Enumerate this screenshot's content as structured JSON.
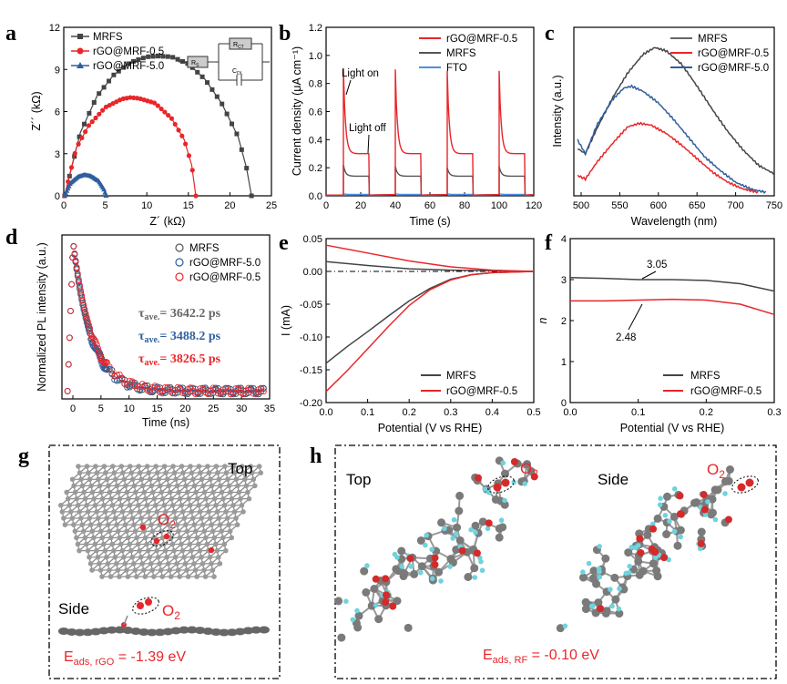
{
  "panels": {
    "a": {
      "label": "a",
      "xlabel": "Z´ (kΩ)",
      "ylabel": "Z´´ (kΩ)",
      "xticks": [
        "0",
        "5",
        "10",
        "15",
        "20",
        "25"
      ],
      "yticks": [
        "0",
        "3",
        "6",
        "9",
        "12"
      ],
      "legend": [
        "MRFS",
        "rGO@MRF-0.5",
        "rGO@MRF-5.0"
      ],
      "circuit": {
        "rs": "R",
        "rs_sub": "S",
        "rct": "R",
        "rct_sub": "CT",
        "cdl": "C",
        "cdl_sub": "DL"
      }
    },
    "b": {
      "label": "b",
      "xlabel": "Time (s)",
      "ylabel": "Current density (μA cm⁻¹)",
      "xticks": [
        "0",
        "20",
        "40",
        "60",
        "80",
        "100",
        "120"
      ],
      "yticks": [
        "0.0",
        "0.2",
        "0.4",
        "0.6",
        "0.8",
        "1.0",
        "1.2"
      ],
      "legend": [
        "rGO@MRF-0.5",
        "MRFS",
        "FTO"
      ],
      "ann_on": "Light on",
      "ann_off": "Light off"
    },
    "c": {
      "label": "c",
      "xlabel": "Wavelength (nm)",
      "ylabel": "Intensity (a.u.)",
      "xticks": [
        "500",
        "550",
        "600",
        "650",
        "700",
        "750"
      ],
      "legend": [
        "MRFS",
        "rGO@MRF-0.5",
        "rGO@MRF-5.0"
      ]
    },
    "d": {
      "label": "d",
      "xlabel": "Time (ns)",
      "ylabel": "Normalized PL intensity (a.u.)",
      "xticks": [
        "0",
        "5",
        "10",
        "15",
        "20",
        "25",
        "30",
        "35"
      ],
      "legend": [
        "MRFS",
        "rGO@MRF-5.0",
        "rGO@MRF-0.5"
      ],
      "tau_sym": "τ",
      "tau_sub": "ave.",
      "tau_vals": [
        "= 3642.2 ps",
        "= 3488.2 ps",
        "= 3826.5 ps"
      ]
    },
    "e": {
      "label": "e",
      "xlabel": "Potential (V vs RHE)",
      "ylabel": "I (mA)",
      "xticks": [
        "0.0",
        "0.1",
        "0.2",
        "0.3",
        "0.4",
        "0.5"
      ],
      "yticks": [
        "0.05",
        "0.00",
        "-0.05",
        "-0.10",
        "-0.15",
        "-0.20"
      ],
      "legend": [
        "MRFS",
        "rGO@MRF-0.5"
      ]
    },
    "f": {
      "label": "f",
      "xlabel": "Potential (V vs RHE)",
      "ylabel": "n",
      "xticks": [
        "0.0",
        "0.1",
        "0.2",
        "0.3"
      ],
      "yticks": [
        "0",
        "1",
        "2",
        "3",
        "4"
      ],
      "legend": [
        "MRFS",
        "rGO@MRF-0.5"
      ],
      "ann_mrfs": "3.05",
      "ann_rgo": "2.48"
    },
    "g": {
      "label": "g",
      "top": "Top",
      "side": "Side",
      "o2": "O",
      "o2_sub": "2",
      "e_main": "E",
      "e_sub": "ads, rGO",
      "e_val": " = -1.39 eV"
    },
    "h": {
      "label": "h",
      "top": "Top",
      "side": "Side",
      "o2": "O",
      "o2_sub": "2",
      "e_main": "E",
      "e_sub": "ads, RF",
      "e_val": " = -0.10 eV"
    }
  },
  "colors": {
    "mrfs": "#444444",
    "rgo05": "#e8262a",
    "rgo50": "#2f5f9e",
    "fto": "#4a90e2",
    "dark": "#555555"
  },
  "chart_data": [
    {
      "type": "scatter",
      "panel": "a",
      "xlabel": "Z´ (kΩ)",
      "ylabel": "Z´´ (kΩ)",
      "xlim": [
        0,
        25
      ],
      "ylim": [
        0,
        12
      ],
      "series": [
        {
          "name": "MRFS",
          "x": [
            0.1,
            2,
            4,
            6,
            8,
            10,
            11.4,
            13,
            15,
            17,
            19,
            21,
            22,
            22.6
          ],
          "y": [
            0,
            4.5,
            7.1,
            8.6,
            9.5,
            9.9,
            9.95,
            9.9,
            9.4,
            8.3,
            6.6,
            4.2,
            2,
            0
          ]
        },
        {
          "name": "rGO@MRF-0.5",
          "x": [
            0.1,
            1.5,
            3,
            5,
            7,
            8,
            9,
            11,
            13,
            14.5,
            15.4,
            15.9
          ],
          "y": [
            0,
            3.4,
            5,
            6.3,
            6.9,
            7,
            6.95,
            6.6,
            5.5,
            4,
            2.2,
            0
          ]
        },
        {
          "name": "rGO@MRF-5.0",
          "x": [
            0.1,
            0.8,
            1.7,
            2.5,
            3.3,
            4.2,
            4.8,
            5.1
          ],
          "y": [
            0,
            0.9,
            1.35,
            1.5,
            1.4,
            1.05,
            0.5,
            0
          ]
        }
      ]
    },
    {
      "type": "line",
      "panel": "b",
      "xlabel": "Time (s)",
      "ylabel": "Current density (μA cm⁻¹)",
      "xlim": [
        0,
        120
      ],
      "ylim": [
        0,
        1.2
      ],
      "light_on_times": [
        10,
        40,
        70,
        100
      ],
      "light_off_times": [
        25,
        55,
        85,
        115
      ],
      "series": [
        {
          "name": "rGO@MRF-0.5",
          "peak": [
            0.91,
            0.9,
            0.89,
            0.89
          ],
          "plateau": 0.3
        },
        {
          "name": "MRFS",
          "peak": [
            0.22,
            0.21,
            0.2,
            0.21
          ],
          "plateau": 0.14
        },
        {
          "name": "FTO",
          "peak": [
            0.015,
            0.015,
            0.015,
            0.015
          ],
          "plateau": 0.01
        }
      ]
    },
    {
      "type": "line",
      "panel": "c",
      "xlabel": "Wavelength (nm)",
      "ylabel": "Intensity (a.u.)",
      "xlim": [
        490,
        750
      ],
      "series": [
        {
          "name": "MRFS",
          "x": [
            495,
            505,
            520,
            540,
            560,
            580,
            595,
            610,
            630,
            650,
            670,
            690,
            710,
            730,
            750
          ],
          "y": [
            0.28,
            0.25,
            0.4,
            0.58,
            0.73,
            0.84,
            0.88,
            0.86,
            0.78,
            0.65,
            0.51,
            0.38,
            0.27,
            0.18,
            0.13
          ]
        },
        {
          "name": "rGO@MRF-0.5",
          "x": [
            495,
            505,
            520,
            540,
            560,
            575,
            590,
            610,
            630,
            650,
            670,
            690,
            710,
            730
          ],
          "y": [
            0.12,
            0.1,
            0.2,
            0.31,
            0.41,
            0.43,
            0.42,
            0.37,
            0.3,
            0.22,
            0.14,
            0.08,
            0.04,
            0.02
          ]
        },
        {
          "name": "rGO@MRF-5.0",
          "x": [
            495,
            505,
            520,
            540,
            555,
            565,
            580,
            600,
            620,
            640,
            660,
            680,
            700,
            720,
            740
          ],
          "y": [
            0.33,
            0.25,
            0.42,
            0.57,
            0.64,
            0.65,
            0.62,
            0.55,
            0.45,
            0.34,
            0.23,
            0.15,
            0.08,
            0.04,
            0.02
          ]
        }
      ]
    },
    {
      "type": "scatter",
      "panel": "d",
      "xlabel": "Time (ns)",
      "ylabel": "Normalized PL intensity (a.u.)",
      "xlim": [
        -2,
        35
      ],
      "ylim": [
        0,
        1.05
      ],
      "decay_peak_x": 0,
      "series": [
        {
          "name": "MRFS",
          "tau_ave_ps": 3642.2
        },
        {
          "name": "rGO@MRF-5.0",
          "tau_ave_ps": 3488.2
        },
        {
          "name": "rGO@MRF-0.5",
          "tau_ave_ps": 3826.5
        }
      ]
    },
    {
      "type": "line",
      "panel": "e",
      "xlabel": "Potential (V vs RHE)",
      "ylabel": "I (mA)",
      "xlim": [
        0,
        0.5
      ],
      "ylim": [
        -0.2,
        0.05
      ],
      "series": [
        {
          "name": "MRFS",
          "upper_x": [
            0,
            0.1,
            0.2,
            0.3,
            0.4,
            0.5
          ],
          "upper_y": [
            0.015,
            0.009,
            0.004,
            0.002,
            0.001,
            0
          ],
          "lower_x": [
            0,
            0.05,
            0.1,
            0.15,
            0.2,
            0.25,
            0.3,
            0.35,
            0.4,
            0.5
          ],
          "lower_y": [
            -0.14,
            -0.115,
            -0.092,
            -0.068,
            -0.045,
            -0.026,
            -0.012,
            -0.005,
            -0.002,
            0
          ]
        },
        {
          "name": "rGO@MRF-0.5",
          "upper_x": [
            0,
            0.1,
            0.2,
            0.3,
            0.4,
            0.5
          ],
          "upper_y": [
            0.04,
            0.028,
            0.016,
            0.007,
            0.002,
            0
          ],
          "lower_x": [
            0,
            0.05,
            0.1,
            0.15,
            0.2,
            0.25,
            0.3,
            0.35,
            0.4,
            0.5
          ],
          "lower_y": [
            -0.183,
            -0.152,
            -0.118,
            -0.084,
            -0.052,
            -0.028,
            -0.013,
            -0.005,
            -0.002,
            0
          ]
        }
      ]
    },
    {
      "type": "line",
      "panel": "f",
      "xlabel": "Potential (V vs RHE)",
      "ylabel": "n",
      "xlim": [
        0,
        0.3
      ],
      "ylim": [
        0,
        4
      ],
      "series": [
        {
          "name": "MRFS",
          "x": [
            0,
            0.05,
            0.1,
            0.15,
            0.2,
            0.25,
            0.3
          ],
          "y": [
            3.05,
            3.03,
            3.0,
            3.0,
            2.98,
            2.9,
            2.72
          ]
        },
        {
          "name": "rGO@MRF-0.5",
          "x": [
            0,
            0.05,
            0.1,
            0.15,
            0.2,
            0.25,
            0.3
          ],
          "y": [
            2.48,
            2.48,
            2.5,
            2.52,
            2.5,
            2.4,
            2.15
          ]
        }
      ]
    }
  ]
}
